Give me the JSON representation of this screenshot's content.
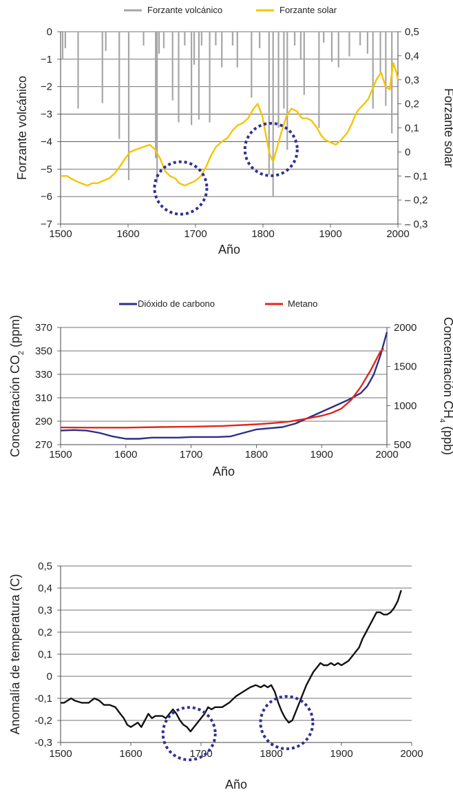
{
  "chart_data": [
    {
      "type": "line",
      "xlabel": "Año",
      "ylabel": "Forzante volcánico",
      "y2label": "Forzante solar",
      "xlim": [
        1500,
        2000
      ],
      "ylim": [
        -7,
        0
      ],
      "y2lim": [
        -0.3,
        0.5
      ],
      "xticks": [
        "1500",
        "1600",
        "1700",
        "1800",
        "1900",
        "2000"
      ],
      "yticks": [
        "0",
        "−1",
        "−2",
        "−3",
        "−4",
        "−5",
        "−6",
        "−7"
      ],
      "y2ticks": [
        "0,5",
        "0,4",
        "0,3",
        "0,2",
        "0,1",
        "0",
        "– 0,1",
        "– 0,2",
        "– 0,3"
      ],
      "grid": true,
      "legend_position": "top",
      "series": [
        {
          "name": "Forzante volcánico",
          "axis": "left",
          "color": "#a6a6a6",
          "kind": "spikes",
          "x": [
            1503,
            1507,
            1526,
            1562,
            1567,
            1587,
            1601,
            1623,
            1641,
            1643,
            1646,
            1653,
            1666,
            1675,
            1684,
            1694,
            1698,
            1705,
            1709,
            1721,
            1730,
            1739,
            1755,
            1762,
            1783,
            1795,
            1809,
            1815,
            1823,
            1831,
            1836,
            1847,
            1856,
            1861,
            1883,
            1890,
            1902,
            1912,
            1928,
            1944,
            1955,
            1963,
            1974,
            1982,
            1991
          ],
          "y": [
            -1.0,
            -0.6,
            -2.8,
            -2.6,
            -0.7,
            -3.9,
            -5.4,
            -0.5,
            -4.6,
            -5.5,
            -0.8,
            -0.6,
            -2.5,
            -3.3,
            -0.5,
            -3.4,
            -1.2,
            -3.2,
            -0.5,
            -3.3,
            -0.5,
            -1.3,
            -0.5,
            -1.3,
            -2.4,
            -0.6,
            -5.2,
            -6.0,
            -3.5,
            -2.8,
            -4.3,
            -0.5,
            -1.0,
            -2.3,
            -3.5,
            -0.4,
            -1.1,
            -1.3,
            -0.9,
            -0.5,
            -0.8,
            -2.8,
            -1.5,
            -2.7,
            -3.7
          ]
        },
        {
          "name": "Forzante solar",
          "axis": "right",
          "color": "#f5c400",
          "x": [
            1500,
            1510,
            1515,
            1522,
            1530,
            1540,
            1547,
            1555,
            1563,
            1572,
            1580,
            1588,
            1595,
            1603,
            1612,
            1622,
            1632,
            1640,
            1648,
            1655,
            1662,
            1670,
            1676,
            1684,
            1692,
            1700,
            1708,
            1716,
            1722,
            1730,
            1738,
            1748,
            1755,
            1762,
            1770,
            1778,
            1786,
            1792,
            1799,
            1805,
            1810,
            1815,
            1820,
            1827,
            1835,
            1842,
            1850,
            1858,
            1865,
            1872,
            1880,
            1886,
            1892,
            1900,
            1908,
            1916,
            1925,
            1932,
            1938,
            1943,
            1950,
            1956,
            1962,
            1968,
            1975,
            1982,
            1988,
            1993,
            1998,
            2000
          ],
          "y": [
            -0.1,
            -0.1,
            -0.11,
            -0.12,
            -0.13,
            -0.14,
            -0.13,
            -0.13,
            -0.12,
            -0.11,
            -0.09,
            -0.06,
            -0.03,
            0.0,
            0.01,
            0.02,
            0.03,
            0.01,
            -0.03,
            -0.08,
            -0.1,
            -0.11,
            -0.13,
            -0.14,
            -0.13,
            -0.12,
            -0.1,
            -0.06,
            -0.02,
            0.02,
            0.04,
            0.06,
            0.09,
            0.11,
            0.12,
            0.14,
            0.18,
            0.2,
            0.15,
            0.06,
            -0.01,
            -0.04,
            0.01,
            0.08,
            0.15,
            0.18,
            0.17,
            0.14,
            0.14,
            0.13,
            0.1,
            0.07,
            0.05,
            0.04,
            0.03,
            0.05,
            0.08,
            0.12,
            0.16,
            0.18,
            0.2,
            0.22,
            0.26,
            0.3,
            0.33,
            0.27,
            0.26,
            0.37,
            0.33,
            0.3
          ]
        }
      ],
      "highlights": [
        {
          "x": 1678,
          "y": -0.15,
          "axis": "right"
        },
        {
          "x": 1812,
          "y": 0.01,
          "axis": "right"
        }
      ]
    },
    {
      "type": "line",
      "xlabel": "Año",
      "ylabel": "Concentración CO",
      "ylabel_sub": "2",
      "ylabel_suffix": " (ppm)",
      "y2label": "Concentración CH",
      "y2label_sub": "4",
      "y2label_suffix": " (ppb)",
      "xlim": [
        1500,
        2000
      ],
      "ylim": [
        270,
        370
      ],
      "y2lim": [
        500,
        2000
      ],
      "xticks": [
        "1500",
        "1600",
        "1700",
        "1800",
        "1900",
        "2000"
      ],
      "yticks": [
        "370",
        "350",
        "330",
        "310",
        "290",
        "270"
      ],
      "y2ticks": [
        "2000",
        "1500",
        "1000",
        "500"
      ],
      "grid": true,
      "legend_position": "top",
      "series": [
        {
          "name": "Dióxido de carbono",
          "axis": "left",
          "color": "#2b2f86",
          "x": [
            1500,
            1520,
            1540,
            1560,
            1580,
            1600,
            1620,
            1640,
            1660,
            1680,
            1700,
            1720,
            1740,
            1760,
            1780,
            1800,
            1820,
            1840,
            1860,
            1880,
            1900,
            1920,
            1940,
            1960,
            1970,
            1980,
            1990,
            2000
          ],
          "y": [
            282.0,
            282.5,
            282.0,
            280.0,
            277.0,
            275.0,
            275.0,
            276.0,
            276.0,
            276.0,
            276.5,
            276.5,
            276.5,
            277.0,
            280.0,
            283.0,
            284.0,
            285.0,
            288.0,
            293.0,
            298.0,
            303.0,
            308.0,
            314.0,
            320.0,
            330.0,
            346.0,
            366.0
          ]
        },
        {
          "name": "Metano",
          "axis": "right",
          "color": "#e1251b",
          "x": [
            1500,
            1550,
            1600,
            1650,
            1700,
            1750,
            1800,
            1825,
            1850,
            1875,
            1900,
            1915,
            1930,
            1945,
            1960,
            1975,
            1990,
            1995
          ],
          "y": [
            720,
            718,
            718,
            725,
            730,
            740,
            760,
            775,
            795,
            830,
            870,
            905,
            960,
            1070,
            1240,
            1450,
            1690,
            1730
          ]
        }
      ]
    },
    {
      "type": "line",
      "xlabel": "Año",
      "ylabel": "Anomalía de temperatura  (C)",
      "xlim": [
        1500,
        2000
      ],
      "ylim": [
        -0.3,
        0.5
      ],
      "xticks": [
        "1500",
        "1600",
        "1700",
        "1800",
        "1900",
        "2000"
      ],
      "yticks": [
        "0,5",
        "0,4",
        "0,3",
        "0,2",
        "0,1",
        "0",
        "-0,1",
        "-0,2",
        "-0,3"
      ],
      "grid": true,
      "series": [
        {
          "name": "",
          "axis": "left",
          "color": "#111111",
          "x": [
            1500,
            1505,
            1510,
            1515,
            1520,
            1530,
            1540,
            1548,
            1555,
            1562,
            1570,
            1578,
            1585,
            1590,
            1595,
            1600,
            1605,
            1610,
            1615,
            1620,
            1625,
            1630,
            1635,
            1640,
            1645,
            1650,
            1655,
            1660,
            1665,
            1670,
            1675,
            1680,
            1685,
            1690,
            1695,
            1700,
            1705,
            1710,
            1715,
            1720,
            1730,
            1740,
            1750,
            1760,
            1770,
            1778,
            1785,
            1790,
            1795,
            1800,
            1805,
            1810,
            1815,
            1820,
            1825,
            1830,
            1835,
            1840,
            1845,
            1850,
            1855,
            1860,
            1865,
            1870,
            1875,
            1880,
            1885,
            1890,
            1895,
            1900,
            1905,
            1910,
            1915,
            1920,
            1925,
            1930,
            1935,
            1940,
            1945,
            1950,
            1955,
            1960,
            1965,
            1970,
            1975,
            1980,
            1985
          ],
          "y": [
            -0.12,
            -0.12,
            -0.11,
            -0.1,
            -0.11,
            -0.12,
            -0.12,
            -0.1,
            -0.11,
            -0.13,
            -0.13,
            -0.14,
            -0.17,
            -0.19,
            -0.22,
            -0.23,
            -0.22,
            -0.21,
            -0.23,
            -0.2,
            -0.17,
            -0.19,
            -0.18,
            -0.18,
            -0.18,
            -0.19,
            -0.17,
            -0.15,
            -0.17,
            -0.2,
            -0.22,
            -0.23,
            -0.25,
            -0.23,
            -0.21,
            -0.19,
            -0.17,
            -0.14,
            -0.15,
            -0.14,
            -0.14,
            -0.12,
            -0.09,
            -0.07,
            -0.05,
            -0.04,
            -0.05,
            -0.04,
            -0.05,
            -0.04,
            -0.07,
            -0.12,
            -0.16,
            -0.19,
            -0.21,
            -0.2,
            -0.16,
            -0.12,
            -0.08,
            -0.04,
            -0.01,
            0.02,
            0.04,
            0.06,
            0.05,
            0.05,
            0.06,
            0.05,
            0.06,
            0.05,
            0.06,
            0.07,
            0.09,
            0.11,
            0.13,
            0.17,
            0.2,
            0.23,
            0.26,
            0.29,
            0.29,
            0.28,
            0.28,
            0.29,
            0.31,
            0.34,
            0.39
          ]
        }
      ],
      "highlights": [
        {
          "x": 1683,
          "y": -0.26,
          "axis": "left"
        },
        {
          "x": 1822,
          "y": -0.21,
          "axis": "left"
        }
      ]
    }
  ]
}
